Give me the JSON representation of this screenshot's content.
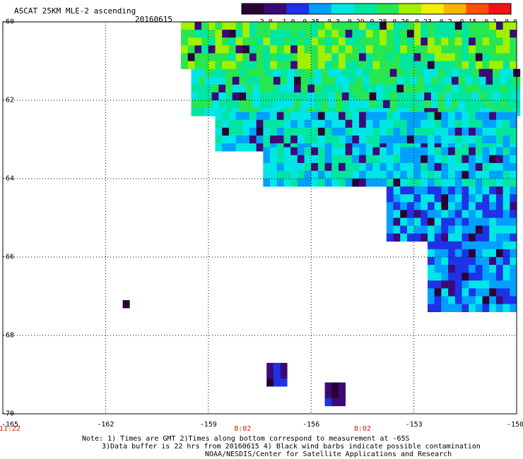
{
  "header": {
    "title": "ASCAT 25KM MLE-2 ascending",
    "date": "20160615"
  },
  "colorbar": {
    "labels": [
      "-2.0",
      "-1.0",
      "-0.35",
      "-0.3",
      "-0.29",
      "-0.28",
      "-0.26",
      "-0.23",
      "-0.2",
      "-0.15",
      "-0.1",
      "0.0"
    ],
    "colors": [
      "#2a0033",
      "#3c0a78",
      "#1e32e6",
      "#00a0ff",
      "#00e6e6",
      "#00e6a0",
      "#28e650",
      "#a0f000",
      "#f0f000",
      "#ffb400",
      "#ff5000",
      "#f01414"
    ]
  },
  "chart_data": {
    "type": "heatmap",
    "title": "ASCAT 25KM MLE-2 ascending",
    "xlabel": "",
    "ylabel": "",
    "xlim": [
      -165,
      -150
    ],
    "ylim": [
      -70,
      -60
    ],
    "x_ticks": [
      "-165",
      "-162",
      "-159",
      "-156",
      "-153",
      "-150"
    ],
    "y_ticks": [
      "-60",
      "-62",
      "-64",
      "-66",
      "-68",
      "-70"
    ],
    "time_labels": [
      {
        "x": -165,
        "label": "11:22"
      },
      {
        "x": -158,
        "label": "8:02"
      },
      {
        "x": -154.5,
        "label": "8:02"
      }
    ],
    "value_scale": [
      "-2.0",
      "-1.0",
      "-0.35",
      "-0.3",
      "-0.29",
      "-0.28",
      "-0.26",
      "-0.23",
      "-0.2",
      "-0.15",
      "-0.1",
      "0.0"
    ],
    "cell_size_deg": [
      0.2,
      0.2
    ],
    "regions": [
      {
        "lon": [
          -159.8,
          -150
        ],
        "lat": [
          -60,
          -61.2
        ],
        "class": 6
      },
      {
        "lon": [
          -159.5,
          -150
        ],
        "lat": [
          -61.2,
          -62.3
        ],
        "class": 5
      },
      {
        "lon": [
          -158.8,
          -150
        ],
        "lat": [
          -62.3,
          -63.2
        ],
        "class": 4
      },
      {
        "lon": [
          -157.4,
          -150
        ],
        "lat": [
          -63.2,
          -64.2
        ],
        "class": 4
      },
      {
        "lon": [
          -153.8,
          -150
        ],
        "lat": [
          -64.2,
          -65.6
        ],
        "class": 3
      },
      {
        "lon": [
          -152.6,
          -150
        ],
        "lat": [
          -65.6,
          -67.3
        ],
        "class": 3
      },
      {
        "lon": [
          -161.5,
          -161.3
        ],
        "lat": [
          -67.1,
          -67.3
        ],
        "class": 1
      },
      {
        "lon": [
          -157.3,
          -156.7
        ],
        "lat": [
          -68.7,
          -69.3
        ],
        "class": 1
      },
      {
        "lon": [
          -155.6,
          -155.1
        ],
        "lat": [
          -69.2,
          -69.7
        ],
        "class": 1
      }
    ]
  },
  "footer": {
    "note1": "Note: 1) Times are GMT 2)Times along bottom correspond to measurement at -65S",
    "note2": "3)Data buffer is 22 hrs from 20160615 4) Black wind barbs indicate possible contamination",
    "note3": "NOAA/NESDIS/Center for Satellite Applications and Research"
  }
}
